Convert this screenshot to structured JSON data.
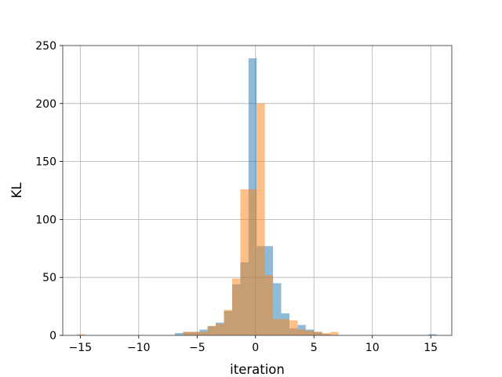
{
  "chart_data": {
    "type": "bar",
    "subtype": "overlaid-histogram",
    "xlabel": "iteration",
    "ylabel": "KL",
    "xlim": [
      -16.5,
      16.8
    ],
    "ylim": [
      0,
      250
    ],
    "xticks": [
      -15,
      -10,
      -5,
      0,
      5,
      10,
      15
    ],
    "yticks": [
      0,
      50,
      100,
      150,
      200,
      250
    ],
    "xtick_labels": [
      "−15",
      "−10",
      "−5",
      "0",
      "5",
      "10",
      "15"
    ],
    "ytick_labels": [
      "0",
      "50",
      "100",
      "150",
      "200",
      "250"
    ],
    "grid": true,
    "legend": "none",
    "series": [
      {
        "color": "#1f77b4",
        "opacity": 0.5,
        "bins": [
          {
            "x0": -6.9,
            "x1": -6.2,
            "count": 2
          },
          {
            "x0": -6.2,
            "x1": -5.5,
            "count": 3
          },
          {
            "x0": -5.5,
            "x1": -4.8,
            "count": 3
          },
          {
            "x0": -4.8,
            "x1": -4.1,
            "count": 5
          },
          {
            "x0": -4.1,
            "x1": -3.4,
            "count": 8
          },
          {
            "x0": -3.4,
            "x1": -2.7,
            "count": 11
          },
          {
            "x0": -2.7,
            "x1": -2.0,
            "count": 21
          },
          {
            "x0": -2.0,
            "x1": -1.3,
            "count": 44
          },
          {
            "x0": -1.3,
            "x1": -0.6,
            "count": 63
          },
          {
            "x0": -0.6,
            "x1": 0.1,
            "count": 239
          },
          {
            "x0": 0.1,
            "x1": 0.8,
            "count": 77
          },
          {
            "x0": 0.8,
            "x1": 1.5,
            "count": 77
          },
          {
            "x0": 1.5,
            "x1": 2.2,
            "count": 45
          },
          {
            "x0": 2.2,
            "x1": 2.9,
            "count": 19
          },
          {
            "x0": 2.9,
            "x1": 3.6,
            "count": 6
          },
          {
            "x0": 3.6,
            "x1": 4.3,
            "count": 9
          },
          {
            "x0": 4.3,
            "x1": 5.0,
            "count": 5
          },
          {
            "x0": 5.0,
            "x1": 5.7,
            "count": 3
          },
          {
            "x0": 5.7,
            "x1": 6.4,
            "count": 1
          },
          {
            "x0": 14.8,
            "x1": 15.5,
            "count": 1
          }
        ]
      },
      {
        "color": "#ff7f0e",
        "opacity": 0.5,
        "bins": [
          {
            "x0": -15.3,
            "x1": -14.6,
            "count": 1
          },
          {
            "x0": -6.2,
            "x1": -5.5,
            "count": 3
          },
          {
            "x0": -5.5,
            "x1": -4.8,
            "count": 3
          },
          {
            "x0": -4.8,
            "x1": -4.1,
            "count": 3
          },
          {
            "x0": -4.1,
            "x1": -3.4,
            "count": 8
          },
          {
            "x0": -3.4,
            "x1": -2.7,
            "count": 10
          },
          {
            "x0": -2.7,
            "x1": -2.0,
            "count": 22
          },
          {
            "x0": -2.0,
            "x1": -1.3,
            "count": 49
          },
          {
            "x0": -1.3,
            "x1": -0.6,
            "count": 126
          },
          {
            "x0": -0.6,
            "x1": 0.1,
            "count": 126
          },
          {
            "x0": 0.1,
            "x1": 0.8,
            "count": 200
          },
          {
            "x0": 0.8,
            "x1": 1.5,
            "count": 52
          },
          {
            "x0": 1.5,
            "x1": 2.2,
            "count": 14
          },
          {
            "x0": 2.2,
            "x1": 2.9,
            "count": 14
          },
          {
            "x0": 2.9,
            "x1": 3.6,
            "count": 13
          },
          {
            "x0": 3.6,
            "x1": 4.3,
            "count": 5
          },
          {
            "x0": 4.3,
            "x1": 5.0,
            "count": 4
          },
          {
            "x0": 5.0,
            "x1": 5.7,
            "count": 3
          },
          {
            "x0": 5.7,
            "x1": 6.4,
            "count": 2
          },
          {
            "x0": 6.4,
            "x1": 7.1,
            "count": 3
          }
        ]
      }
    ]
  }
}
